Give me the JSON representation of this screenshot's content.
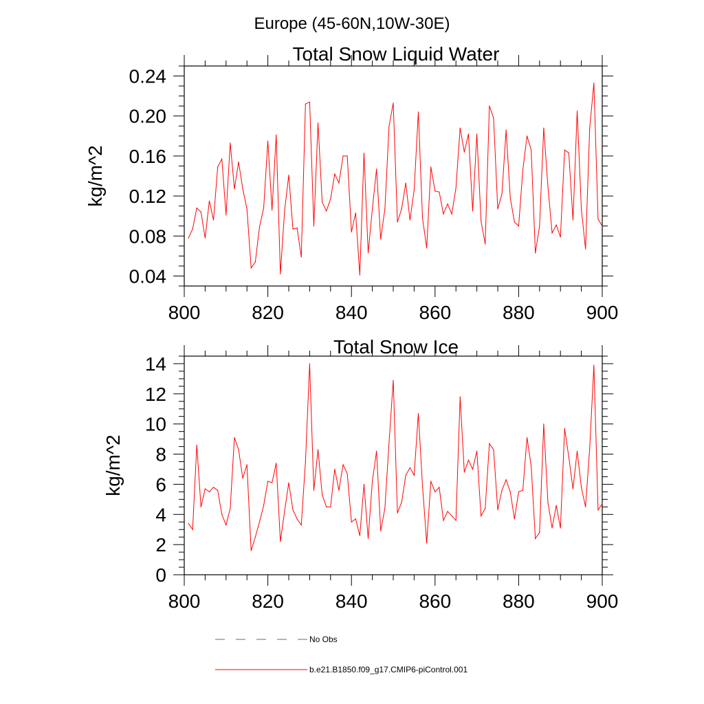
{
  "suptitle": "Europe (45-60N,10W-30E)",
  "legend": {
    "obs_label": "No Obs",
    "obs_color": "#5a6a9a",
    "model_label": "b.e21.B1850.f09_g17.CMIP6-piControl.001",
    "model_color": "#ff0000"
  },
  "chart_data": [
    {
      "type": "line",
      "title": "Total Snow Liquid Water",
      "xlabel": "",
      "ylabel": "kg/m^2",
      "xlim": [
        800,
        900
      ],
      "ylim": [
        0.03,
        0.25
      ],
      "xticks": [
        800,
        820,
        840,
        860,
        880,
        900
      ],
      "xtick_labels": [
        "800",
        "820",
        "840",
        "860",
        "880",
        "900"
      ],
      "yticks": [
        0.04,
        0.08,
        0.12,
        0.16,
        0.2,
        0.24
      ],
      "ytick_labels": [
        "0.04",
        "0.08",
        "0.12",
        "0.16",
        "0.20",
        "0.24"
      ],
      "series": [
        {
          "name": "b.e21.B1850.f09_g17.CMIP6-piControl.001",
          "color": "#ff0000",
          "x": [
            801,
            802,
            803,
            804,
            805,
            806,
            807,
            808,
            809,
            810,
            811,
            812,
            813,
            814,
            815,
            816,
            817,
            818,
            819,
            820,
            821,
            822,
            823,
            824,
            825,
            826,
            827,
            828,
            829,
            830,
            831,
            832,
            833,
            834,
            835,
            836,
            837,
            838,
            839,
            840,
            841,
            842,
            843,
            844,
            845,
            846,
            847,
            848,
            849,
            850,
            851,
            852,
            853,
            854,
            855,
            856,
            857,
            858,
            859,
            860,
            861,
            862,
            863,
            864,
            865,
            866,
            867,
            868,
            869,
            870,
            871,
            872,
            873,
            874,
            875,
            876,
            877,
            878,
            879,
            880,
            881,
            882,
            883,
            884,
            885,
            886,
            887,
            888,
            889,
            890,
            891,
            892,
            893,
            894,
            895,
            896,
            897,
            898,
            899,
            900
          ],
          "values": [
            0.078,
            0.087,
            0.108,
            0.104,
            0.078,
            0.115,
            0.096,
            0.149,
            0.157,
            0.101,
            0.173,
            0.127,
            0.154,
            0.127,
            0.107,
            0.048,
            0.054,
            0.089,
            0.108,
            0.175,
            0.106,
            0.181,
            0.042,
            0.105,
            0.141,
            0.087,
            0.088,
            0.059,
            0.212,
            0.214,
            0.09,
            0.193,
            0.114,
            0.105,
            0.117,
            0.142,
            0.133,
            0.16,
            0.16,
            0.084,
            0.103,
            0.041,
            0.163,
            0.063,
            0.107,
            0.147,
            0.077,
            0.107,
            0.19,
            0.213,
            0.094,
            0.107,
            0.133,
            0.096,
            0.126,
            0.204,
            0.098,
            0.068,
            0.149,
            0.125,
            0.124,
            0.102,
            0.112,
            0.102,
            0.128,
            0.188,
            0.164,
            0.182,
            0.105,
            0.182,
            0.095,
            0.072,
            0.21,
            0.198,
            0.107,
            0.122,
            0.186,
            0.118,
            0.094,
            0.09,
            0.146,
            0.18,
            0.166,
            0.063,
            0.09,
            0.188,
            0.13,
            0.083,
            0.091,
            0.079,
            0.166,
            0.163,
            0.096,
            0.205,
            0.107,
            0.067,
            0.188,
            0.233,
            0.097,
            0.09
          ]
        }
      ]
    },
    {
      "type": "line",
      "title": "Total Snow Ice",
      "xlabel": "",
      "ylabel": "kg/m^2",
      "xlim": [
        800,
        900
      ],
      "ylim": [
        0,
        14.5
      ],
      "xticks": [
        800,
        820,
        840,
        860,
        880,
        900
      ],
      "xtick_labels": [
        "800",
        "820",
        "840",
        "860",
        "880",
        "900"
      ],
      "yticks": [
        0,
        2,
        4,
        6,
        8,
        10,
        12,
        14
      ],
      "ytick_labels": [
        "0",
        "2",
        "4",
        "6",
        "8",
        "10",
        "12",
        "14"
      ],
      "series": [
        {
          "name": "b.e21.B1850.f09_g17.CMIP6-piControl.001",
          "color": "#ff0000",
          "x": [
            801,
            802,
            803,
            804,
            805,
            806,
            807,
            808,
            809,
            810,
            811,
            812,
            813,
            814,
            815,
            816,
            817,
            818,
            819,
            820,
            821,
            822,
            823,
            824,
            825,
            826,
            827,
            828,
            829,
            830,
            831,
            832,
            833,
            834,
            835,
            836,
            837,
            838,
            839,
            840,
            841,
            842,
            843,
            844,
            845,
            846,
            847,
            848,
            849,
            850,
            851,
            852,
            853,
            854,
            855,
            856,
            857,
            858,
            859,
            860,
            861,
            862,
            863,
            864,
            865,
            866,
            867,
            868,
            869,
            870,
            871,
            872,
            873,
            874,
            875,
            876,
            877,
            878,
            879,
            880,
            881,
            882,
            883,
            884,
            885,
            886,
            887,
            888,
            889,
            890,
            891,
            892,
            893,
            894,
            895,
            896,
            897,
            898,
            899,
            900
          ],
          "values": [
            3.4,
            3.0,
            8.6,
            4.5,
            5.7,
            5.5,
            5.8,
            5.6,
            4.0,
            3.3,
            4.4,
            9.1,
            8.3,
            6.4,
            7.3,
            1.6,
            2.5,
            3.5,
            4.6,
            6.2,
            6.1,
            7.4,
            2.2,
            4.2,
            6.1,
            4.3,
            3.7,
            3.3,
            7.5,
            14.0,
            5.6,
            8.3,
            5.3,
            4.5,
            4.5,
            7.0,
            5.6,
            7.3,
            6.7,
            3.5,
            3.7,
            2.6,
            6.0,
            2.4,
            6.2,
            8.2,
            2.9,
            4.4,
            8.8,
            12.9,
            4.1,
            4.8,
            6.6,
            7.1,
            6.6,
            10.7,
            5.9,
            2.1,
            6.2,
            5.5,
            5.8,
            3.6,
            4.2,
            3.9,
            3.6,
            11.8,
            6.8,
            7.6,
            7.0,
            8.2,
            3.9,
            4.4,
            8.7,
            8.3,
            4.3,
            5.6,
            6.3,
            5.5,
            3.7,
            5.5,
            5.6,
            9.1,
            7.2,
            2.4,
            2.8,
            10.0,
            4.8,
            3.1,
            4.6,
            3.1,
            9.7,
            7.8,
            5.7,
            8.2,
            5.8,
            4.5,
            8.4,
            13.9,
            4.3,
            4.7
          ]
        }
      ]
    }
  ]
}
